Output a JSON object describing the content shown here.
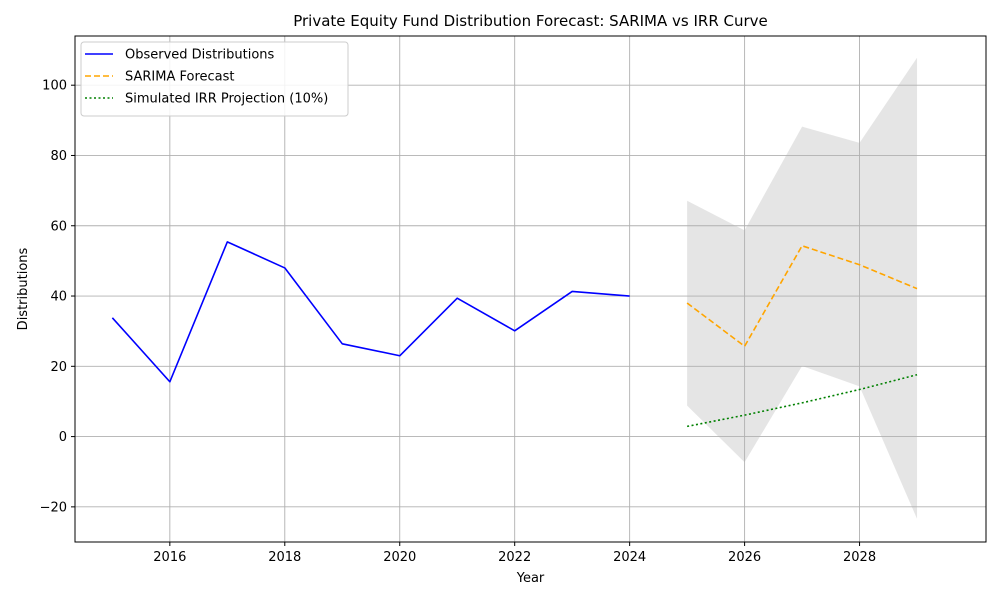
{
  "chart_data": {
    "type": "line",
    "title": "Private Equity Fund Distribution Forecast: SARIMA vs IRR Curve",
    "xlabel": "Year",
    "ylabel": "Distributions",
    "xlim": [
      2014.35,
      2030.2
    ],
    "ylim": [
      -30,
      114
    ],
    "x_ticks": [
      2016,
      2018,
      2020,
      2022,
      2024,
      2026,
      2028
    ],
    "y_ticks": [
      -20,
      0,
      20,
      40,
      60,
      80,
      100
    ],
    "grid": true,
    "legend_position": "top-left",
    "series": [
      {
        "name": "Observed Distributions",
        "style": "solid",
        "color": "#0000ff",
        "x": [
          2015,
          2016,
          2017,
          2018,
          2019,
          2020,
          2021,
          2022,
          2023,
          2024
        ],
        "y": [
          33.8,
          15.6,
          55.4,
          48.0,
          26.4,
          23.0,
          39.4,
          30.1,
          41.3,
          40.0
        ]
      },
      {
        "name": "SARIMA Forecast",
        "style": "dashed",
        "color": "#ffa500",
        "x": [
          2025,
          2026,
          2027,
          2028,
          2029
        ],
        "y": [
          38.0,
          25.7,
          54.3,
          48.9,
          42.1
        ]
      },
      {
        "name": "Simulated IRR Projection (10%)",
        "style": "dotted",
        "color": "#008000",
        "x": [
          2025,
          2026,
          2027,
          2028,
          2029
        ],
        "y": [
          2.9,
          6.1,
          9.6,
          13.4,
          17.6
        ]
      }
    ],
    "confidence_band": {
      "color": "#d3d3d3",
      "x": [
        2025,
        2026,
        2027,
        2028,
        2029
      ],
      "lower": [
        8.8,
        -7.3,
        20.1,
        14.3,
        -23.4
      ],
      "upper": [
        67.1,
        58.7,
        88.2,
        83.6,
        107.8
      ]
    }
  }
}
